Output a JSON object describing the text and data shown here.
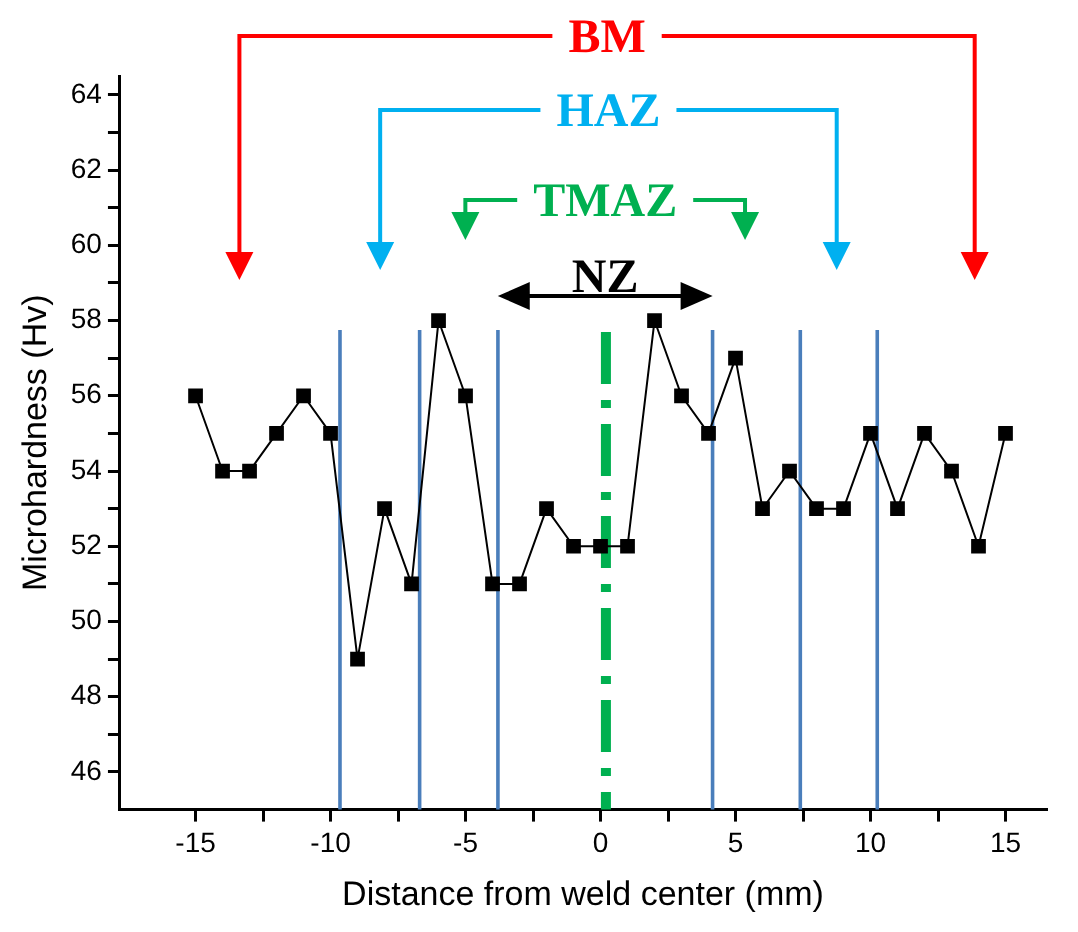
{
  "chart_data": {
    "type": "line",
    "xlabel": "Distance from weld center (mm)",
    "ylabel": "Microhardness (Hv)",
    "x": [
      -15,
      -14,
      -13,
      -12,
      -11,
      -10,
      -9,
      -8,
      -7,
      -6,
      -5,
      -4,
      -3,
      -2,
      -1,
      0,
      1,
      2,
      3,
      4,
      5,
      6,
      7,
      8,
      9,
      10,
      11,
      12,
      13,
      14,
      15
    ],
    "series": [
      {
        "color": "#000000",
        "values": [
          56,
          54,
          54,
          55,
          56,
          55,
          49,
          53,
          51,
          58,
          56,
          51,
          51,
          53,
          52,
          52,
          52,
          58,
          56,
          55,
          57,
          53,
          54,
          53,
          53,
          55,
          53,
          55,
          54,
          52,
          55
        ]
      }
    ],
    "marker": "square",
    "line_style": "solid",
    "grid": false,
    "legend": false,
    "xlim": [
      -17.8,
      16.5
    ],
    "ylim": [
      45,
      64.5
    ],
    "xticks": [
      -15,
      {
        "value": -12.5,
        "label": null
      },
      -10,
      {
        "value": -7.5,
        "label": null
      },
      -5,
      {
        "value": -2.5,
        "label": null
      },
      0,
      {
        "value": 2.5,
        "label": null
      },
      5,
      {
        "value": 7.5,
        "label": null
      },
      10,
      {
        "value": 12.5,
        "label": null
      },
      15
    ],
    "yticks": [
      46,
      {
        "value": 47,
        "label": null
      },
      48,
      {
        "value": 49,
        "label": null
      },
      50,
      {
        "value": 51,
        "label": null
      },
      52,
      {
        "value": 53,
        "label": null
      },
      54,
      {
        "value": 55,
        "label": null
      },
      56,
      {
        "value": 57,
        "label": null
      },
      58,
      {
        "value": 59,
        "label": null
      },
      60,
      {
        "value": 61,
        "label": null
      },
      62,
      {
        "value": 63,
        "label": null
      },
      64
    ],
    "ref_lines": [
      {
        "axis": "x",
        "value": -9.65,
        "color": "#4a7ebb",
        "line_style": "solid"
      },
      {
        "axis": "x",
        "value": -6.7,
        "color": "#4a7ebb",
        "line_style": "solid"
      },
      {
        "axis": "x",
        "value": -3.8,
        "color": "#4a7ebb",
        "line_style": "solid"
      },
      {
        "axis": "x",
        "value": 0.2,
        "color": "#00b050",
        "line_style": "dashed"
      },
      {
        "axis": "x",
        "value": 4.15,
        "color": "#4a7ebb",
        "line_style": "solid"
      },
      {
        "axis": "x",
        "value": 7.4,
        "color": "#4a7ebb",
        "line_style": "solid"
      },
      {
        "axis": "x",
        "value": 10.25,
        "color": "#4a7ebb",
        "line_style": "solid"
      }
    ],
    "annotations": [
      "BM",
      "HAZ",
      "TMAZ",
      "NZ"
    ]
  }
}
